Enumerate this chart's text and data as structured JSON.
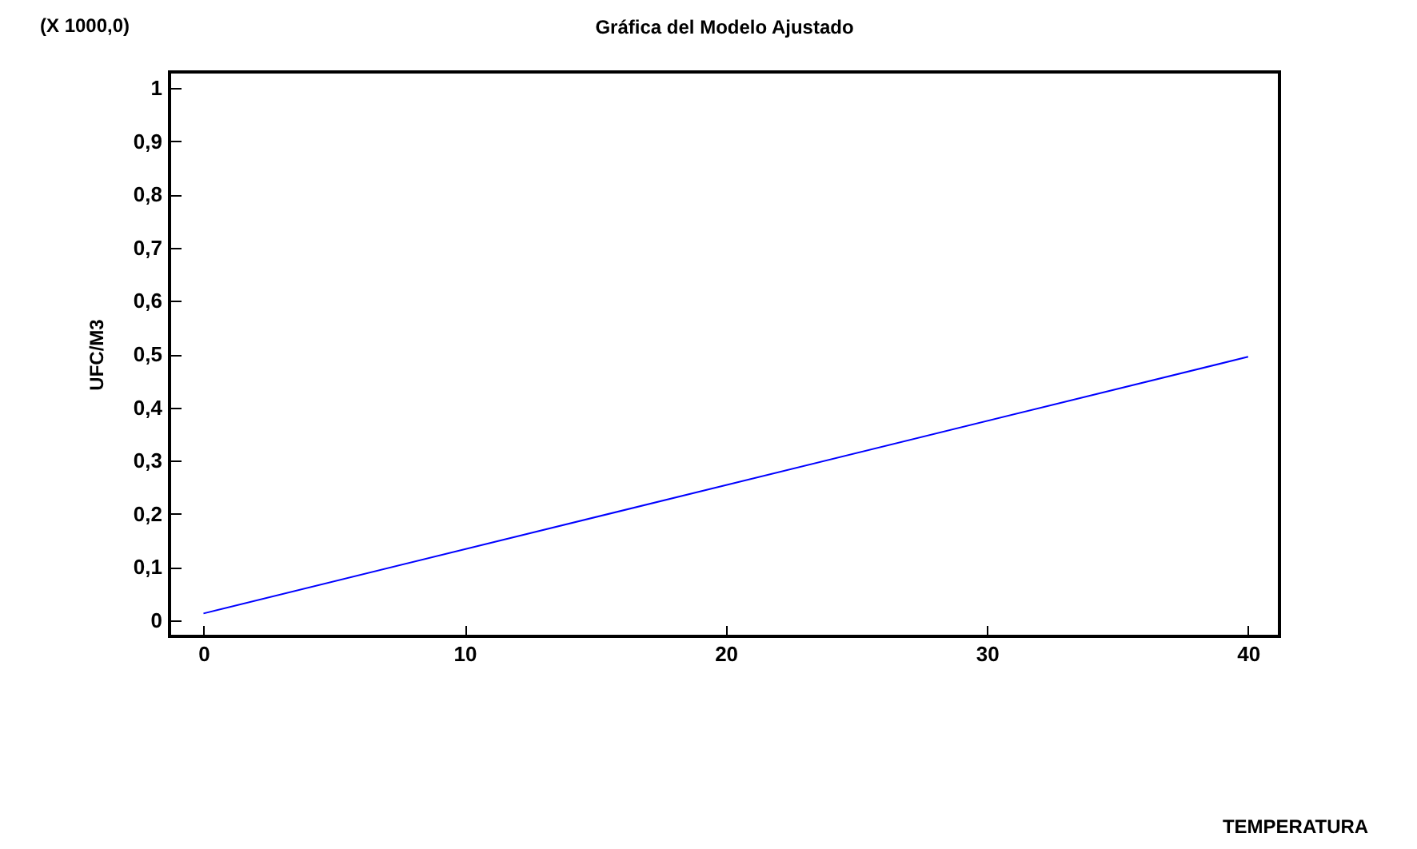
{
  "chart_data": {
    "type": "line",
    "title": "Gráfica del Modelo Ajustado",
    "ylabel": "UFC/M3",
    "annotations": [
      "(X 1000,0)",
      "TEMPERATURA"
    ],
    "x": [
      0,
      40
    ],
    "series": [
      {
        "color": "#0000ff",
        "values": [
          0.013,
          0.495
        ]
      }
    ],
    "xlim": [
      -1.3,
      41.2
    ],
    "xticks": [
      0,
      10,
      20,
      30,
      40
    ],
    "ylim": [
      -0.03,
      1.03
    ],
    "yticks": [
      {
        "value": 0,
        "label": "0"
      },
      {
        "value": 0.1,
        "label": "0,1"
      },
      {
        "value": 0.2,
        "label": "0,2"
      },
      {
        "value": 0.3,
        "label": "0,3"
      },
      {
        "value": 0.4,
        "label": "0,4"
      },
      {
        "value": 0.5,
        "label": "0,5"
      },
      {
        "value": 0.6,
        "label": "0,6"
      },
      {
        "value": 0.7,
        "label": "0,7"
      },
      {
        "value": 0.8,
        "label": "0,8"
      },
      {
        "value": 0.9,
        "label": "0,9"
      },
      {
        "value": 1,
        "label": "1"
      }
    ],
    "grid": false
  }
}
